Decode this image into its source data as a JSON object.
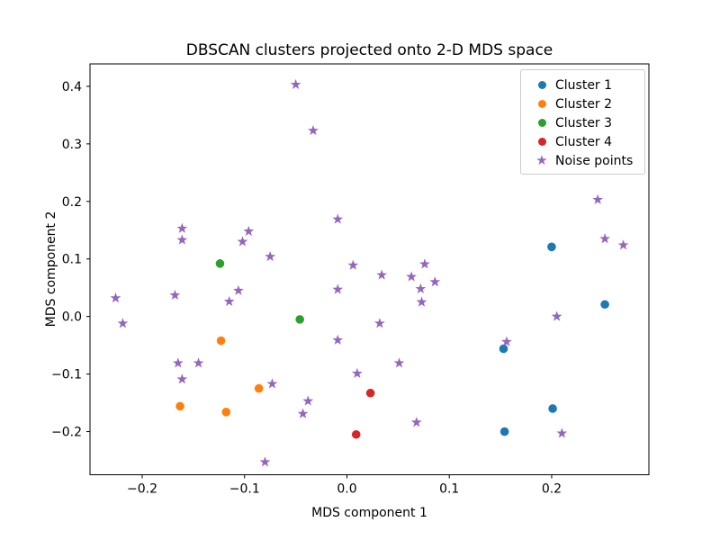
{
  "figure": {
    "title": "DBSCAN clusters projected onto 2-D MDS space",
    "xlabel": "MDS component 1",
    "ylabel": "MDS component 2"
  },
  "chart_data": {
    "type": "scatter",
    "title": "DBSCAN clusters projected onto 2-D MDS space",
    "xlabel": "MDS component 1",
    "ylabel": "MDS component 2",
    "xlim": [
      -0.251,
      0.295
    ],
    "ylim": [
      -0.275,
      0.439
    ],
    "xtick_values": [
      -0.2,
      -0.1,
      0.0,
      0.1,
      0.2
    ],
    "xtick_labels": [
      "−0.2",
      "−0.1",
      "0.0",
      "0.1",
      "0.2"
    ],
    "ytick_values": [
      0.4,
      0.3,
      0.2,
      0.1,
      0.0,
      -0.1,
      -0.2
    ],
    "ytick_labels": [
      "0.4",
      "0.3",
      "0.2",
      "0.1",
      "0.0",
      "−0.1",
      "−0.2"
    ],
    "grid": false,
    "legend_position": "upper right",
    "series": [
      {
        "name": "Cluster 1",
        "marker": "circle",
        "color": "#1f77b4",
        "points": [
          [
            0.2,
            0.121
          ],
          [
            0.252,
            0.021
          ],
          [
            0.153,
            -0.056
          ],
          [
            0.201,
            -0.16
          ],
          [
            0.154,
            -0.2
          ]
        ]
      },
      {
        "name": "Cluster 2",
        "marker": "circle",
        "color": "#ff7f0e",
        "points": [
          [
            -0.123,
            -0.042
          ],
          [
            -0.086,
            -0.125
          ],
          [
            -0.163,
            -0.156
          ],
          [
            -0.118,
            -0.166
          ]
        ]
      },
      {
        "name": "Cluster 3",
        "marker": "circle",
        "color": "#2ca02c",
        "points": [
          [
            -0.124,
            0.092
          ],
          [
            -0.046,
            -0.005
          ]
        ]
      },
      {
        "name": "Cluster 4",
        "marker": "circle",
        "color": "#d62728",
        "points": [
          [
            0.023,
            -0.133
          ],
          [
            0.009,
            -0.205
          ]
        ]
      },
      {
        "name": "Noise points",
        "marker": "star",
        "color": "#9467bd",
        "points": [
          [
            -0.05,
            0.403
          ],
          [
            -0.033,
            0.323
          ],
          [
            0.245,
            0.203
          ],
          [
            -0.009,
            0.169
          ],
          [
            -0.161,
            0.153
          ],
          [
            -0.096,
            0.148
          ],
          [
            0.252,
            0.135
          ],
          [
            -0.161,
            0.133
          ],
          [
            -0.102,
            0.13
          ],
          [
            0.27,
            0.124
          ],
          [
            -0.075,
            0.104
          ],
          [
            0.076,
            0.091
          ],
          [
            0.006,
            0.089
          ],
          [
            0.034,
            0.072
          ],
          [
            0.063,
            0.069
          ],
          [
            0.086,
            0.06
          ],
          [
            0.072,
            0.048
          ],
          [
            -0.009,
            0.047
          ],
          [
            -0.106,
            0.045
          ],
          [
            -0.168,
            0.037
          ],
          [
            -0.226,
            0.032
          ],
          [
            -0.115,
            0.026
          ],
          [
            0.073,
            0.025
          ],
          [
            0.205,
            0.0
          ],
          [
            -0.219,
            -0.012
          ],
          [
            0.032,
            -0.012
          ],
          [
            -0.009,
            -0.041
          ],
          [
            0.156,
            -0.044
          ],
          [
            -0.165,
            -0.081
          ],
          [
            -0.145,
            -0.081
          ],
          [
            0.051,
            -0.081
          ],
          [
            0.01,
            -0.099
          ],
          [
            -0.161,
            -0.109
          ],
          [
            -0.073,
            -0.117
          ],
          [
            -0.038,
            -0.147
          ],
          [
            -0.043,
            -0.169
          ],
          [
            0.068,
            -0.184
          ],
          [
            0.21,
            -0.203
          ],
          [
            -0.08,
            -0.253
          ]
        ]
      }
    ]
  }
}
